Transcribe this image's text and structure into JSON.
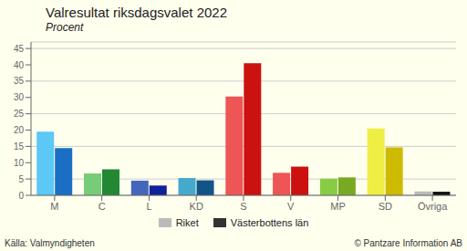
{
  "chart_data": {
    "type": "bar",
    "title": "Valresultat riksdagsvalet 2022",
    "subtitle": "Procent",
    "categories": [
      "M",
      "C",
      "L",
      "KD",
      "S",
      "V",
      "MP",
      "SD",
      "Övriga"
    ],
    "series": [
      {
        "name": "Riket",
        "color": "#BBBBBB",
        "colors": [
          "#5BC8F5",
          "#77CC77",
          "#4466BB",
          "#44AACC",
          "#EE5555",
          "#EE5555",
          "#88CC44",
          "#EEEE44",
          "#BBBBBB"
        ],
        "values": [
          19.5,
          6.7,
          4.5,
          5.3,
          30.3,
          6.9,
          5.1,
          20.5,
          1.2
        ]
      },
      {
        "name": "Västerbottens län",
        "color": "#333333",
        "colors": [
          "#1A6FC4",
          "#228833",
          "#112299",
          "#115588",
          "#CC1111",
          "#CC1111",
          "#77AA22",
          "#CCBB00",
          "#111111"
        ],
        "values": [
          14.5,
          8.0,
          3.0,
          4.6,
          40.5,
          8.8,
          5.5,
          14.7,
          1.1
        ]
      }
    ],
    "ylim": [
      0,
      47
    ],
    "yticks": [
      0,
      5,
      10,
      15,
      20,
      25,
      30,
      35,
      40,
      45
    ],
    "grid": true,
    "legend": "bottom",
    "annotations": [
      "Källa: Valmyndigheten",
      "© Pantzare Information AB"
    ]
  }
}
